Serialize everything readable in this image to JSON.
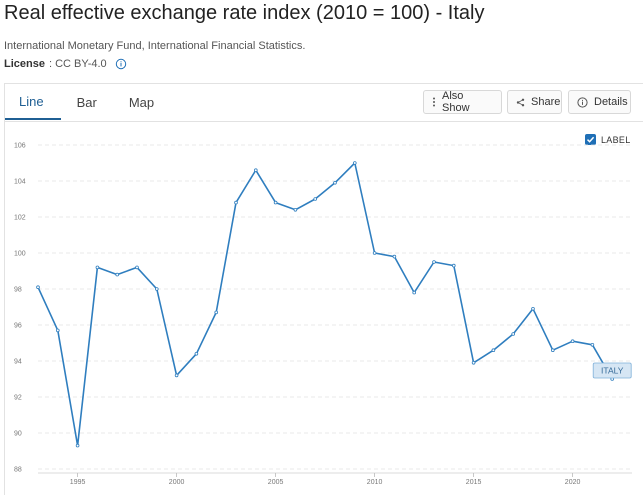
{
  "header": {
    "title": "Real effective exchange rate index (2010 = 100) - Italy",
    "source": "International Monetary Fund, International Financial Statistics.",
    "license_label": "License",
    "license_value": ": CC BY-4.0"
  },
  "tabs": [
    {
      "label": "Line",
      "active": true
    },
    {
      "label": "Bar",
      "active": false
    },
    {
      "label": "Map",
      "active": false
    }
  ],
  "toolbar": {
    "also_show": "Also Show",
    "share": "Share",
    "details": "Details"
  },
  "label_toggle": {
    "label": "LABEL",
    "checked": true
  },
  "colors": {
    "accent": "#1f5f94",
    "series": "#2f7ebf",
    "grid": "#e3e3e3"
  },
  "chart_data": {
    "type": "line",
    "title": "",
    "xlabel": "",
    "ylabel": "",
    "xlim": [
      1993,
      2023
    ],
    "ylim": [
      88,
      106
    ],
    "x_ticks": [
      1995,
      2000,
      2005,
      2010,
      2015,
      2020
    ],
    "y_ticks": [
      88,
      90,
      92,
      94,
      96,
      98,
      100,
      102,
      104,
      106
    ],
    "grid": "horizontal dashed",
    "series": [
      {
        "name": "ITALY",
        "x": [
          1993,
          1994,
          1995,
          1996,
          1997,
          1998,
          1999,
          2000,
          2001,
          2002,
          2003,
          2004,
          2005,
          2006,
          2007,
          2008,
          2009,
          2010,
          2011,
          2012,
          2013,
          2014,
          2015,
          2016,
          2017,
          2018,
          2019,
          2020,
          2021,
          2022
        ],
        "values": [
          98.1,
          95.7,
          89.3,
          99.2,
          98.8,
          99.2,
          98.0,
          93.2,
          94.4,
          96.7,
          102.8,
          104.6,
          102.8,
          102.4,
          103.0,
          103.9,
          105.0,
          100.0,
          99.8,
          97.8,
          99.5,
          99.3,
          93.9,
          94.6,
          95.5,
          96.9,
          94.6,
          95.1,
          94.9,
          93.0
        ]
      }
    ]
  }
}
